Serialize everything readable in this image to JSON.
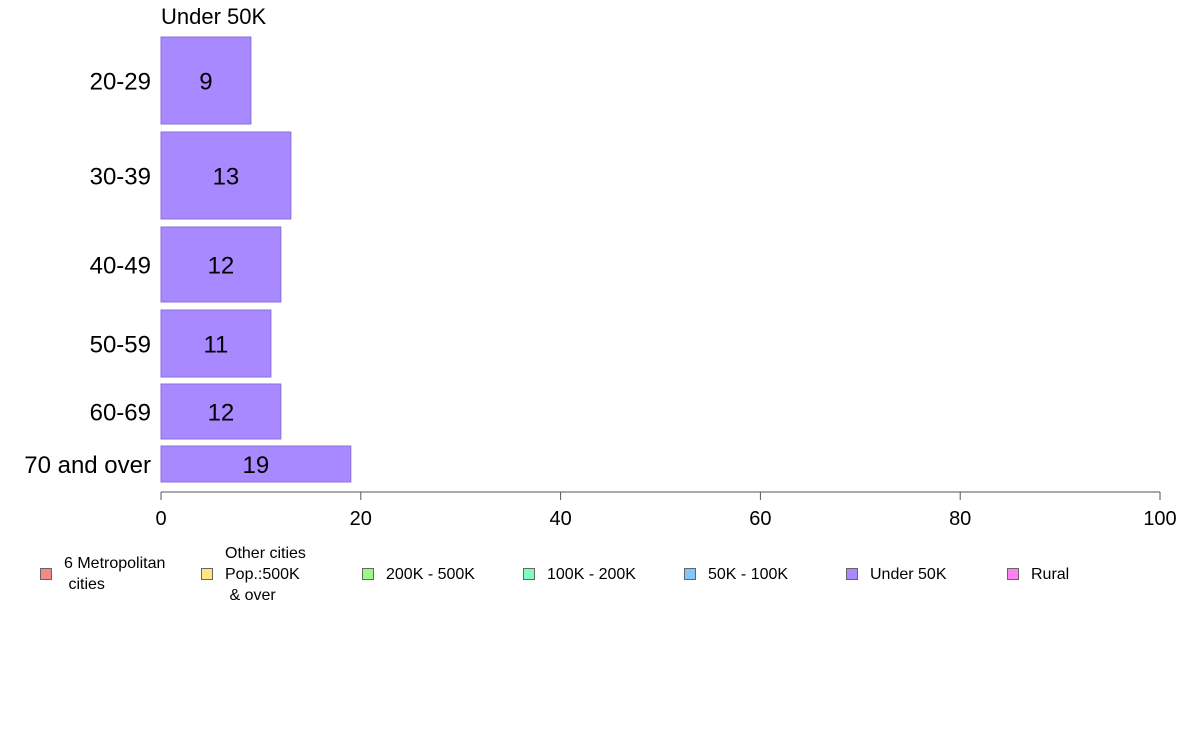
{
  "chart_data": {
    "type": "bar",
    "orientation": "horizontal",
    "title": "Under 50K",
    "categories": [
      "20-29",
      "30-39",
      "40-49",
      "50-59",
      "60-69",
      "70 and over"
    ],
    "values": [
      9,
      13,
      12,
      11,
      12,
      19
    ],
    "xlim": [
      0,
      100
    ],
    "xticks": [
      "0",
      "20",
      "40",
      "60",
      "80",
      "100"
    ],
    "grid": false,
    "bar_color": "#a989ff",
    "bar_edge_color": "#8a6fd6",
    "legend_position": "bottom",
    "legend": [
      {
        "label": "6 Metropolitan\n cities",
        "color": "#f08b87"
      },
      {
        "label": "Other cities\nPop.:500K\n & over",
        "color": "#ffe680"
      },
      {
        "label": "200K - 500K",
        "color": "#9cfa81"
      },
      {
        "label": "100K - 200K",
        "color": "#80fbc2"
      },
      {
        "label": "50K - 100K",
        "color": "#85c7fb"
      },
      {
        "label": "Under 50K",
        "color": "#a989ff"
      },
      {
        "label": "Rural",
        "color": "#ff80f0"
      }
    ]
  }
}
